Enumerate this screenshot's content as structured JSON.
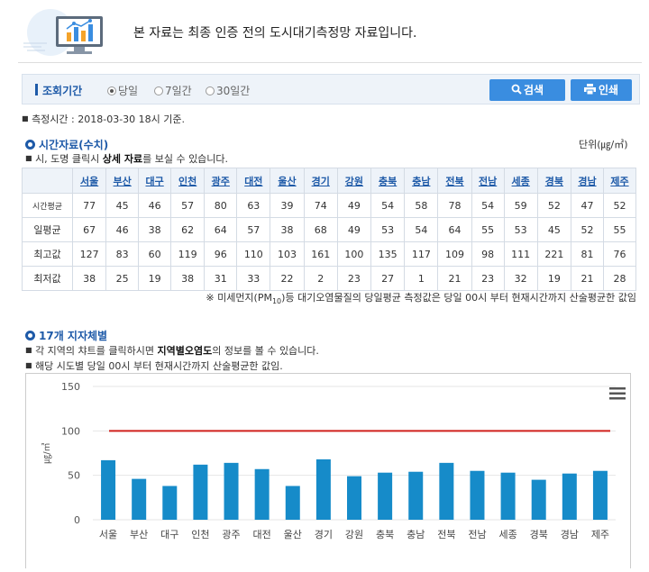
{
  "notice": {
    "text": "본 자료는 최종 인증 전의 도시대기측정망 자료입니다."
  },
  "search": {
    "label": "조회기간",
    "options": [
      "당일",
      "7일간",
      "30일간"
    ],
    "selected": "당일",
    "search_button": "검색",
    "print_button": "인쇄"
  },
  "measure_time": "측정시간 : 2018-03-30 18시 기준.",
  "hourly": {
    "title": "시간자료(수치)",
    "unit": "단위(㎍/㎥)",
    "hint_prefix": "시, 도명 클릭시 ",
    "hint_bold": "상세 자료",
    "hint_suffix": "를 보실 수 있습니다.",
    "regions": [
      "서울",
      "부산",
      "대구",
      "인천",
      "광주",
      "대전",
      "울산",
      "경기",
      "강원",
      "충북",
      "충남",
      "전북",
      "전남",
      "세종",
      "경북",
      "경남",
      "제주"
    ],
    "rows": [
      {
        "label": "시간평균",
        "values": [
          "77",
          "45",
          "46",
          "57",
          "80",
          "63",
          "39",
          "74",
          "49",
          "54",
          "58",
          "78",
          "54",
          "59",
          "52",
          "47",
          "52"
        ]
      },
      {
        "label": "일평균",
        "values": [
          "67",
          "46",
          "38",
          "62",
          "64",
          "57",
          "38",
          "68",
          "49",
          "53",
          "54",
          "64",
          "55",
          "53",
          "45",
          "52",
          "55"
        ]
      },
      {
        "label": "최고값",
        "values": [
          "127",
          "83",
          "60",
          "119",
          "96",
          "110",
          "103",
          "161",
          "100",
          "135",
          "117",
          "109",
          "98",
          "111",
          "221",
          "81",
          "76"
        ]
      },
      {
        "label": "최저값",
        "values": [
          "38",
          "25",
          "19",
          "38",
          "31",
          "33",
          "22",
          "2",
          "23",
          "27",
          "1",
          "21",
          "23",
          "32",
          "19",
          "21",
          "28"
        ]
      }
    ],
    "footnote_a": "※ 미세먼지(PM",
    "footnote_sub": "10",
    "footnote_b": ")등 대기오염물질의 당일평균 측정값은 당일 00시 부터 현재시간까지 산술평균한 값임"
  },
  "regional": {
    "title": "17개 지자체별",
    "line1_prefix": "각 지역의 챠트를 클릭하시면 ",
    "line1_bold": "지역별오염도",
    "line1_suffix": "의 정보를 볼 수 있습니다.",
    "line2": "해당 시도별 당일 00시 부터 현재시간까지 산술평균한 값임."
  },
  "colors": {
    "bar": "#168bc9",
    "threshold": "#d0211c",
    "accent": "#1e5aa8"
  },
  "chart_data": {
    "type": "bar",
    "categories": [
      "서울",
      "부산",
      "대구",
      "인천",
      "광주",
      "대전",
      "울산",
      "경기",
      "강원",
      "충북",
      "충남",
      "전북",
      "전남",
      "세종",
      "경북",
      "경남",
      "제주"
    ],
    "values": [
      67,
      46,
      38,
      62,
      64,
      57,
      38,
      68,
      49,
      53,
      54,
      64,
      55,
      53,
      45,
      52,
      55
    ],
    "threshold": 100,
    "ylabel": "㎍/㎥",
    "ylim": [
      0,
      150
    ],
    "yticks": [
      0,
      50,
      100,
      150
    ],
    "grid": true,
    "legend": "none"
  }
}
